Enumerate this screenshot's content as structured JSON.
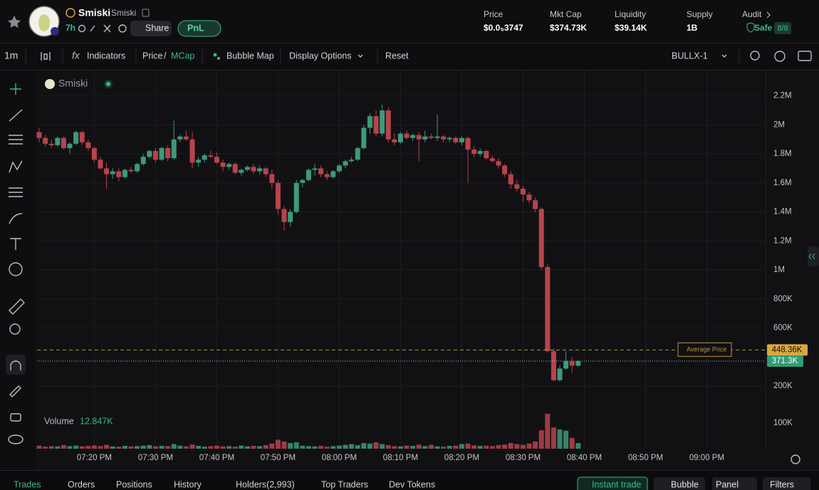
{
  "header": {
    "name": "Smiski",
    "symbol": "Smiski",
    "age": "7h",
    "share": "Share",
    "pnl": "PnL",
    "stats": [
      {
        "label": "Price",
        "value": "$0.0₅3747"
      },
      {
        "label": "Mkt Cap",
        "value": "$374.73K"
      },
      {
        "label": "Liquidity",
        "value": "$39.14K"
      },
      {
        "label": "Supply",
        "value": "1B"
      },
      {
        "label": "Audit",
        "value": "Safe",
        "badge": "8/8"
      }
    ]
  },
  "toolbar": {
    "interval": "1m",
    "indicators": "Indicators",
    "price": "Price",
    "separator": "/",
    "mcap": "MCap",
    "bubble_map": "Bubble Map",
    "display_options": "Display Options",
    "reset": "Reset",
    "source": "BULLX-1"
  },
  "chart": {
    "type": "candlestick",
    "legend": "Smiski",
    "volume_label": "Volume",
    "volume_value": "12.847K",
    "average_label": "Average Price",
    "xlim": [
      -0.35,
      118.6
    ],
    "xticks": [
      {
        "value": 9,
        "label": "07:20 PM"
      },
      {
        "value": 19,
        "label": "07:30 PM"
      },
      {
        "value": 29,
        "label": "07:40 PM"
      },
      {
        "value": 39,
        "label": "07:50 PM"
      },
      {
        "value": 49,
        "label": "08:00 PM"
      },
      {
        "value": 59,
        "label": "08:10 PM"
      },
      {
        "value": 69,
        "label": "08:20 PM"
      },
      {
        "value": 79,
        "label": "08:30 PM"
      },
      {
        "value": 89,
        "label": "08:40 PM"
      },
      {
        "value": 99,
        "label": "08:50 PM"
      },
      {
        "value": 109,
        "label": "09:00 PM"
      }
    ],
    "ylim": [
      13000,
      2370000
    ],
    "yticks": [
      {
        "value": 200000,
        "label": "200K"
      },
      {
        "value": 600000,
        "label": "600K"
      },
      {
        "value": 800000,
        "label": "800K"
      },
      {
        "value": 1000000,
        "label": "1M"
      },
      {
        "value": 1200000,
        "label": "1.2M"
      },
      {
        "value": 1400000,
        "label": "1.4M"
      },
      {
        "value": 1600000,
        "label": "1.6M"
      },
      {
        "value": 1800000,
        "label": "1.8M"
      },
      {
        "value": 2000000,
        "label": "2M"
      },
      {
        "value": 2200000,
        "label": "2.2M"
      }
    ],
    "volume_ylim": [
      0,
      175000
    ],
    "volume_yticks": [
      {
        "value": 100000,
        "label": "100K"
      }
    ],
    "up_color": "#3d9a7a",
    "down_color": "#b9434c",
    "grid": true,
    "average_price": {
      "value": 448360,
      "label": "448.36K"
    },
    "last_price": {
      "value": 371300,
      "label": "371.3K"
    },
    "candles": [
      [
        1950000,
        1980000,
        1880000,
        1910000
      ],
      [
        1910000,
        1930000,
        1850000,
        1870000
      ],
      [
        1870000,
        1900000,
        1840000,
        1860000
      ],
      [
        1860000,
        1920000,
        1850000,
        1910000
      ],
      [
        1910000,
        1920000,
        1830000,
        1840000
      ],
      [
        1840000,
        1880000,
        1800000,
        1870000
      ],
      [
        1870000,
        1960000,
        1860000,
        1950000
      ],
      [
        1950000,
        1960000,
        1860000,
        1880000
      ],
      [
        1880000,
        1900000,
        1820000,
        1840000
      ],
      [
        1840000,
        1850000,
        1740000,
        1760000
      ],
      [
        1760000,
        1780000,
        1690000,
        1700000
      ],
      [
        1700000,
        1740000,
        1560000,
        1660000
      ],
      [
        1660000,
        1700000,
        1630000,
        1680000
      ],
      [
        1680000,
        1700000,
        1610000,
        1640000
      ],
      [
        1640000,
        1700000,
        1630000,
        1690000
      ],
      [
        1690000,
        1710000,
        1670000,
        1680000
      ],
      [
        1680000,
        1740000,
        1670000,
        1730000
      ],
      [
        1730000,
        1800000,
        1720000,
        1780000
      ],
      [
        1780000,
        1830000,
        1770000,
        1820000
      ],
      [
        1820000,
        1840000,
        1740000,
        1760000
      ],
      [
        1760000,
        1850000,
        1750000,
        1840000
      ],
      [
        1840000,
        1860000,
        1750000,
        1770000
      ],
      [
        1770000,
        2030000,
        1760000,
        1900000
      ],
      [
        1900000,
        1930000,
        1880000,
        1920000
      ],
      [
        1920000,
        1960000,
        1890000,
        1900000
      ],
      [
        1900000,
        1950000,
        1700000,
        1740000
      ],
      [
        1740000,
        1780000,
        1710000,
        1760000
      ],
      [
        1760000,
        1800000,
        1740000,
        1790000
      ],
      [
        1790000,
        1820000,
        1770000,
        1780000
      ],
      [
        1780000,
        1810000,
        1730000,
        1740000
      ],
      [
        1740000,
        1760000,
        1680000,
        1710000
      ],
      [
        1710000,
        1740000,
        1690000,
        1730000
      ],
      [
        1730000,
        1740000,
        1660000,
        1670000
      ],
      [
        1670000,
        1700000,
        1650000,
        1690000
      ],
      [
        1690000,
        1720000,
        1680000,
        1710000
      ],
      [
        1710000,
        1730000,
        1660000,
        1680000
      ],
      [
        1680000,
        1720000,
        1660000,
        1700000
      ],
      [
        1700000,
        1710000,
        1640000,
        1660000
      ],
      [
        1660000,
        1690000,
        1560000,
        1600000
      ],
      [
        1600000,
        1620000,
        1380000,
        1420000
      ],
      [
        1420000,
        1440000,
        1270000,
        1330000
      ],
      [
        1330000,
        1420000,
        1300000,
        1400000
      ],
      [
        1400000,
        1620000,
        1390000,
        1600000
      ],
      [
        1600000,
        1630000,
        1570000,
        1620000
      ],
      [
        1620000,
        1700000,
        1610000,
        1690000
      ],
      [
        1690000,
        1730000,
        1650000,
        1700000
      ],
      [
        1700000,
        1720000,
        1640000,
        1660000
      ],
      [
        1660000,
        1680000,
        1620000,
        1640000
      ],
      [
        1640000,
        1690000,
        1630000,
        1680000
      ],
      [
        1680000,
        1730000,
        1670000,
        1720000
      ],
      [
        1720000,
        1760000,
        1700000,
        1750000
      ],
      [
        1750000,
        1780000,
        1740000,
        1760000
      ],
      [
        1760000,
        1850000,
        1750000,
        1840000
      ],
      [
        1840000,
        2000000,
        1830000,
        1980000
      ],
      [
        1980000,
        2080000,
        1940000,
        2060000
      ],
      [
        2060000,
        2100000,
        1920000,
        1940000
      ],
      [
        1940000,
        2140000,
        1920000,
        2100000
      ],
      [
        2100000,
        2120000,
        1880000,
        1900000
      ],
      [
        1900000,
        1940000,
        1860000,
        1880000
      ],
      [
        1880000,
        1950000,
        1870000,
        1940000
      ],
      [
        1940000,
        1960000,
        1900000,
        1910000
      ],
      [
        1910000,
        1940000,
        1890000,
        1930000
      ],
      [
        1930000,
        1950000,
        1750000,
        1900000
      ],
      [
        1900000,
        1960000,
        1880000,
        1920000
      ],
      [
        1920000,
        1940000,
        1900000,
        1910000
      ],
      [
        1910000,
        2070000,
        1890000,
        1920000
      ],
      [
        1920000,
        1930000,
        1880000,
        1900000
      ],
      [
        1900000,
        1920000,
        1880000,
        1910000
      ],
      [
        1910000,
        1920000,
        1870000,
        1880000
      ],
      [
        1880000,
        1920000,
        1860000,
        1910000
      ],
      [
        1910000,
        1920000,
        1600000,
        1830000
      ],
      [
        1830000,
        1850000,
        1780000,
        1800000
      ],
      [
        1800000,
        1840000,
        1780000,
        1820000
      ],
      [
        1820000,
        1830000,
        1760000,
        1770000
      ],
      [
        1770000,
        1790000,
        1740000,
        1750000
      ],
      [
        1750000,
        1770000,
        1700000,
        1720000
      ],
      [
        1720000,
        1730000,
        1640000,
        1660000
      ],
      [
        1660000,
        1680000,
        1560000,
        1590000
      ],
      [
        1590000,
        1620000,
        1540000,
        1560000
      ],
      [
        1560000,
        1580000,
        1470000,
        1520000
      ],
      [
        1520000,
        1540000,
        1460000,
        1480000
      ],
      [
        1480000,
        1500000,
        1400000,
        1420000
      ],
      [
        1420000,
        1430000,
        1000000,
        1020000
      ],
      [
        1020000,
        1040000,
        430000,
        440000
      ],
      [
        440000,
        460000,
        230000,
        240000
      ],
      [
        240000,
        340000,
        230000,
        320000
      ],
      [
        320000,
        440000,
        310000,
        370000
      ],
      [
        370000,
        400000,
        290000,
        340000
      ],
      [
        340000,
        380000,
        330000,
        371300
      ]
    ],
    "volumes": [
      12000,
      8000,
      10000,
      9000,
      14000,
      10000,
      12000,
      9000,
      11000,
      13000,
      10000,
      15000,
      9000,
      8000,
      11000,
      9000,
      10000,
      12000,
      14000,
      9000,
      11000,
      10000,
      18000,
      12000,
      9000,
      16000,
      11000,
      8000,
      10000,
      12000,
      9000,
      10000,
      8000,
      12000,
      9000,
      11000,
      10000,
      14000,
      20000,
      35000,
      28000,
      22000,
      25000,
      12000,
      10000,
      9000,
      11000,
      8000,
      10000,
      12000,
      15000,
      18000,
      14000,
      22000,
      20000,
      25000,
      18000,
      14000,
      10000,
      9000,
      12000,
      11000,
      16000,
      10000,
      15000,
      9000,
      8000,
      11000,
      12000,
      18000,
      20000,
      13000,
      11000,
      12000,
      10000,
      14000,
      16000,
      22000,
      18000,
      15000,
      20000,
      28000,
      72000,
      136000,
      83000,
      75000,
      70000,
      42000,
      22000
    ]
  },
  "tabs": [
    "Trades",
    "Orders",
    "Positions",
    "History",
    "Holders(2,993)",
    "Top Traders",
    "Dev Tokens"
  ],
  "actions": [
    "Instant trade",
    "Bubble",
    "Panel",
    "Filters"
  ]
}
